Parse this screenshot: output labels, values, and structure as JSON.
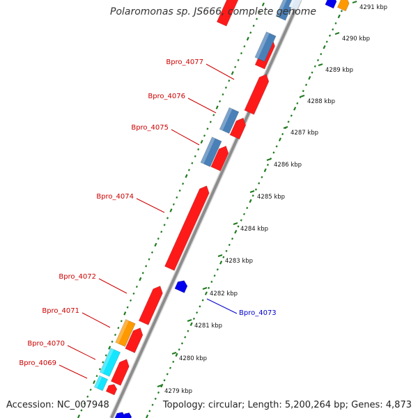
{
  "title": "Polaromonas sp. JS666, complete genome",
  "footer": {
    "accession": "Accession: NC_007948",
    "summary": "Topology: circular; Length: 5,200,264 bp; Genes: 4,873"
  },
  "colors": {
    "background": "#ffffff",
    "backbone": "#8c8c8c",
    "tick": "#1e7a1e",
    "label_red": "#cc0000",
    "label_blue": "#0000cc",
    "gene_red": "#ff1a1a",
    "gene_steelblue": "#4a80b8",
    "gene_orange": "#ff9900",
    "gene_cyan": "#14e6ff",
    "gene_blue": "#0000ee",
    "gene_white": "#dfeaf5"
  },
  "scale": {
    "kbp_labels": [
      "4279 kbp",
      "4280 kbp",
      "4281 kbp",
      "4282 kbp",
      "4283 kbp",
      "4284 kbp",
      "4285 kbp",
      "4286 kbp",
      "4287 kbp",
      "4288 kbp",
      "4289 kbp",
      "4290 kbp",
      "4291 kbp"
    ]
  },
  "gene_labels": [
    {
      "name": "Bpro_4077",
      "color": "red"
    },
    {
      "name": "Bpro_4076",
      "color": "red"
    },
    {
      "name": "Bpro_4075",
      "color": "red"
    },
    {
      "name": "Bpro_4074",
      "color": "red"
    },
    {
      "name": "Bpro_4073",
      "color": "blue"
    },
    {
      "name": "Bpro_4072",
      "color": "red"
    },
    {
      "name": "Bpro_4071",
      "color": "red"
    },
    {
      "name": "Bpro_4070",
      "color": "red"
    },
    {
      "name": "Bpro_4069",
      "color": "red"
    }
  ],
  "gene_types": [
    "red",
    "red",
    "red",
    "red",
    "red",
    "red",
    "red",
    "red",
    "red",
    "red",
    "steelblue",
    "steelblue",
    "steelblue",
    "steelblue",
    "orange",
    "orange",
    "cyan",
    "cyan",
    "blue",
    "blue",
    "blue",
    "blue",
    "white"
  ]
}
